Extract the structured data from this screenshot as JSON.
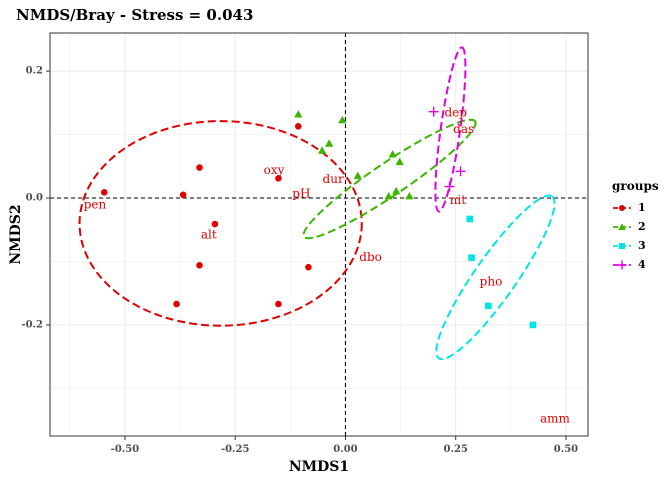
{
  "chart_data": {
    "type": "scatter",
    "title": "NMDS/Bray - Stress = 0.043",
    "xlabel": "NMDS1",
    "ylabel": "NMDS2",
    "xlim": [
      -0.67,
      0.55
    ],
    "ylim": [
      -0.375,
      0.26
    ],
    "x_ticks": [
      -0.5,
      -0.25,
      0.0,
      0.25,
      0.5
    ],
    "x_tick_labels": [
      "-0.50",
      "-0.25",
      "0.00",
      "0.25",
      "0.50"
    ],
    "y_ticks": [
      -0.2,
      0.0,
      0.2
    ],
    "y_tick_labels": [
      "-0.2",
      "0.0",
      "0.2"
    ],
    "grid": true,
    "reference_lines": {
      "x": 0,
      "y": 0,
      "style": "dashed"
    },
    "legend": {
      "title": "groups",
      "placement": "right"
    },
    "series": [
      {
        "name": "1",
        "color": "#e00000",
        "marker": "circle",
        "points": [
          {
            "x": -0.547,
            "y": 0.009
          },
          {
            "x": -0.368,
            "y": 0.005
          },
          {
            "x": -0.331,
            "y": 0.048
          },
          {
            "x": -0.296,
            "y": -0.041
          },
          {
            "x": -0.331,
            "y": -0.106
          },
          {
            "x": -0.383,
            "y": -0.167
          },
          {
            "x": -0.152,
            "y": 0.031
          },
          {
            "x": -0.107,
            "y": 0.113
          },
          {
            "x": -0.084,
            "y": -0.109
          },
          {
            "x": -0.152,
            "y": -0.167
          }
        ],
        "ellipse": {
          "cx": -0.283,
          "cy": -0.04,
          "rx": 0.32,
          "ry": 0.232,
          "angle": 0
        }
      },
      {
        "name": "2",
        "color": "#3ab500",
        "marker": "triangle",
        "points": [
          {
            "x": -0.107,
            "y": 0.132
          },
          {
            "x": -0.053,
            "y": 0.075
          },
          {
            "x": -0.037,
            "y": 0.086
          },
          {
            "x": -0.007,
            "y": 0.123
          },
          {
            "x": 0.028,
            "y": 0.035
          },
          {
            "x": 0.107,
            "y": 0.069
          },
          {
            "x": 0.098,
            "y": 0.003
          },
          {
            "x": 0.115,
            "y": 0.011
          },
          {
            "x": 0.123,
            "y": 0.057
          },
          {
            "x": 0.145,
            "y": 0.003
          }
        ],
        "ellipse": {
          "cx": 0.1,
          "cy": 0.03,
          "rx": 0.234,
          "ry": 0.037,
          "angle": 34
        }
      },
      {
        "name": "3",
        "color": "#00e5e5",
        "marker": "square",
        "points": [
          {
            "x": 0.282,
            "y": -0.033
          },
          {
            "x": 0.286,
            "y": -0.094
          },
          {
            "x": 0.324,
            "y": -0.17
          },
          {
            "x": 0.425,
            "y": -0.2
          }
        ],
        "ellipse": {
          "cx": 0.34,
          "cy": -0.125,
          "rx": 0.224,
          "ry": 0.047,
          "angle": 55
        }
      },
      {
        "name": "4",
        "color": "#e000e0",
        "marker": "plus",
        "points": [
          {
            "x": 0.2,
            "y": 0.136
          },
          {
            "x": 0.236,
            "y": 0.018
          },
          {
            "x": 0.261,
            "y": 0.042
          }
        ],
        "ellipse": {
          "cx": 0.238,
          "cy": 0.108,
          "rx": 0.188,
          "ry": 0.022,
          "angle": 82
        }
      }
    ],
    "env_vectors": [
      {
        "label": "pen",
        "x": -0.568,
        "y": -0.011
      },
      {
        "label": "alt",
        "x": -0.31,
        "y": -0.058
      },
      {
        "label": "oxy",
        "x": -0.162,
        "y": 0.043
      },
      {
        "label": "pH",
        "x": -0.1,
        "y": 0.006
      },
      {
        "label": "dur",
        "x": -0.028,
        "y": 0.029
      },
      {
        "label": "dbo",
        "x": 0.057,
        "y": -0.094
      },
      {
        "label": "dep",
        "x": 0.25,
        "y": 0.134
      },
      {
        "label": "das",
        "x": 0.268,
        "y": 0.108
      },
      {
        "label": "nit",
        "x": 0.255,
        "y": -0.004
      },
      {
        "label": "pho",
        "x": 0.33,
        "y": -0.132
      },
      {
        "label": "amm",
        "x": 0.475,
        "y": -0.348
      }
    ]
  }
}
